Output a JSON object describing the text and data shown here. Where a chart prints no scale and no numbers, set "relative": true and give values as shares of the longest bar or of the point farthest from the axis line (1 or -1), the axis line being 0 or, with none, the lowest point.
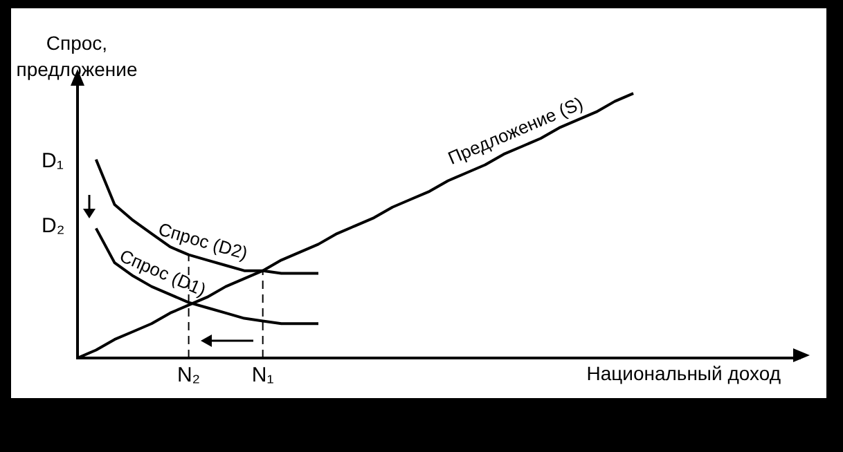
{
  "chart_data": {
    "type": "line",
    "relative": true,
    "xlabel": "Национальный доход",
    "ylabel": "Спрос, предложение",
    "categories": [
      null,
      null,
      null,
      null,
      null,
      null,
      "N₂",
      null,
      null,
      null,
      "N₁",
      null,
      null,
      null,
      null,
      null,
      null,
      null,
      null,
      null,
      null,
      null,
      null,
      null,
      null,
      null,
      null,
      null,
      null,
      null,
      null,
      null,
      null,
      null,
      null,
      null,
      null,
      null,
      null,
      null
    ],
    "series": [
      {
        "name": "Предложение (S)",
        "color": "#000000",
        "values": [
          0,
          0.03,
          0.07,
          0.1,
          0.13,
          0.17,
          0.2,
          0.23,
          0.27,
          0.3,
          0.33,
          0.37,
          0.4,
          0.43,
          0.47,
          0.5,
          0.53,
          0.57,
          0.6,
          0.63,
          0.67,
          0.7,
          0.73,
          0.77,
          0.8,
          0.83,
          0.87,
          0.9,
          0.93,
          0.97,
          1,
          null,
          null,
          null,
          null,
          null,
          null,
          null,
          null,
          null
        ]
      },
      {
        "name": "Спрос (D2)",
        "color": "#000000",
        "values": [
          null,
          0.75,
          0.58,
          0.52,
          0.47,
          0.42,
          0.39,
          0.37,
          0.35,
          0.33,
          0.33,
          0.32,
          0.32,
          0.32,
          null,
          null,
          null,
          null,
          null,
          null,
          null,
          null,
          null,
          null,
          null,
          null,
          null,
          null,
          null,
          null,
          null,
          null,
          null,
          null,
          null,
          null,
          null,
          null,
          null,
          null
        ]
      },
      {
        "name": "Спрос (D1)",
        "color": "#000000",
        "values": [
          null,
          0.49,
          0.36,
          0.31,
          0.27,
          0.24,
          0.21,
          0.19,
          0.17,
          0.15,
          0.14,
          0.13,
          0.13,
          0.13,
          null,
          null,
          null,
          null,
          null,
          null,
          null,
          null,
          null,
          null,
          null,
          null,
          null,
          null,
          null,
          null,
          null,
          null,
          null,
          null,
          null,
          null,
          null,
          null,
          null,
          null
        ]
      }
    ],
    "annotations": [
      "D₁",
      "D₂"
    ],
    "ref_lines": [
      {
        "axis": "x",
        "value": "N₂",
        "line_style": "dashed",
        "color": "#000000"
      },
      {
        "axis": "x",
        "value": "N₁",
        "line_style": "dashed",
        "color": "#000000"
      }
    ],
    "legend": false,
    "grid": false,
    "marker": "none",
    "line_style": "solid"
  }
}
